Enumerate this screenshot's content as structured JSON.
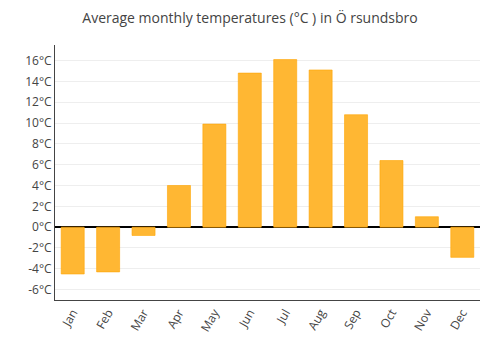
{
  "chart_data": {
    "type": "bar",
    "title": "Average monthly temperatures (°C ) in Ö rsundsbro",
    "categories": [
      "Jan",
      "Feb",
      "Mar",
      "Apr",
      "May",
      "Jun",
      "Jul",
      "Aug",
      "Sep",
      "Oct",
      "Nov",
      "Dec"
    ],
    "values": [
      -4.5,
      -4.3,
      -0.8,
      4.0,
      9.9,
      14.8,
      16.1,
      15.1,
      10.8,
      6.4,
      1.0,
      -2.9
    ],
    "color": "#FFB733",
    "ylim": [
      -7,
      17.5
    ],
    "yticks": [
      {
        "value": -6,
        "label": "-6°C"
      },
      {
        "value": -4,
        "label": "-4°C"
      },
      {
        "value": -2,
        "label": "-2°C"
      },
      {
        "value": 0,
        "label": "0°C"
      },
      {
        "value": 2,
        "label": "2°C"
      },
      {
        "value": 4,
        "label": "4°C"
      },
      {
        "value": 6,
        "label": "6°C"
      },
      {
        "value": 8,
        "label": "8°C"
      },
      {
        "value": 10,
        "label": "10°C"
      },
      {
        "value": 12,
        "label": "12°C"
      },
      {
        "value": 14,
        "label": "14°C"
      },
      {
        "value": 16,
        "label": "16°C"
      }
    ],
    "grid": true
  }
}
